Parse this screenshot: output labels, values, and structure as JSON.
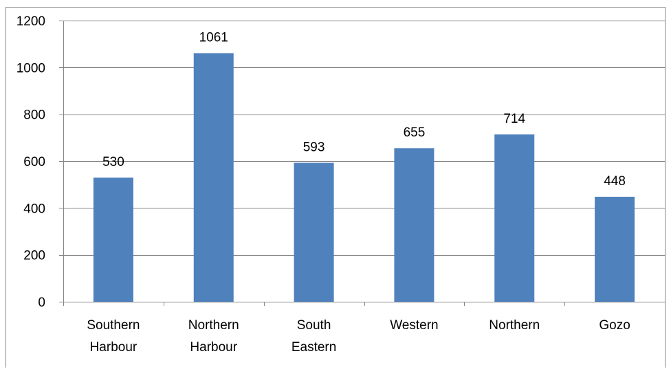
{
  "chart_data": {
    "type": "bar",
    "title": "",
    "xlabel": "",
    "ylabel": "",
    "categories": [
      [
        "Southern",
        "Harbour"
      ],
      [
        "Northern",
        "Harbour"
      ],
      [
        "South",
        "Eastern"
      ],
      [
        "Western"
      ],
      [
        "Northern"
      ],
      [
        "Gozo"
      ]
    ],
    "values": [
      530,
      1061,
      593,
      655,
      714,
      448
    ],
    "data_labels": [
      "530",
      "1061",
      "593",
      "655",
      "714",
      "448"
    ],
    "ylim": [
      0,
      1200
    ],
    "yticks": [
      0,
      200,
      400,
      600,
      800,
      1000,
      1200
    ],
    "ytick_labels": [
      "0",
      "200",
      "400",
      "600",
      "800",
      "1000",
      "1200"
    ],
    "grid": true,
    "legend": "none",
    "bar_color": "#4F81BD",
    "grid_color": "#868686",
    "axis_color": "#868686",
    "frame_color": "#868686"
  }
}
